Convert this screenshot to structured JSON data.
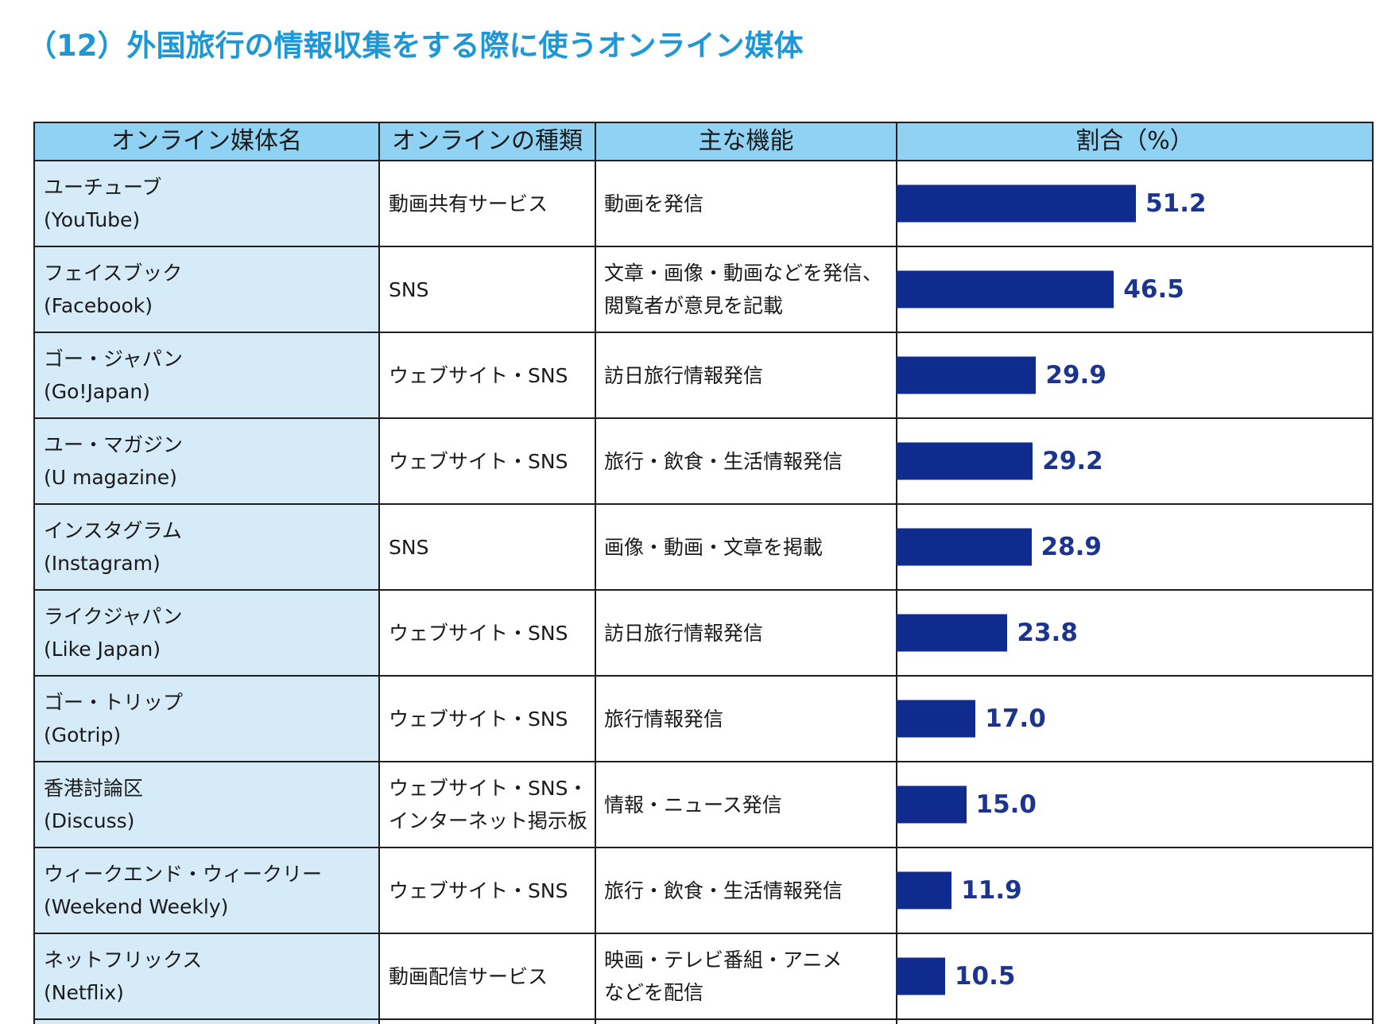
{
  "colors": {
    "title": "#1e97d6",
    "header_background": "#8fd2f3",
    "name_column_background": "#d5ebf8",
    "bar": "#0f2b8e",
    "value_label": "#1a348f",
    "border": "#1e1e1e"
  },
  "chart_data": {
    "type": "bar",
    "orientation": "horizontal",
    "title": "（12）外国旅行の情報収集をする際に使うオンライン媒体",
    "columns": [
      "オンライン媒体名",
      "オンラインの種類",
      "主な機能",
      "割合（%）"
    ],
    "xlim": [
      0,
      100
    ],
    "grid": false,
    "rows": [
      {
        "name": "ユーチューブ",
        "name_en": "(YouTube)",
        "type": [
          "動画共有サービス"
        ],
        "function": [
          "動画を発信"
        ],
        "value": 51.2
      },
      {
        "name": "フェイスブック",
        "name_en": "(Facebook)",
        "type": [
          "SNS"
        ],
        "function": [
          "文章・画像・動画などを発信、",
          "閲覧者が意見を記載"
        ],
        "value": 46.5
      },
      {
        "name": "ゴー・ジャパン",
        "name_en": "(Go!Japan)",
        "type": [
          "ウェブサイト・SNS"
        ],
        "function": [
          "訪日旅行情報発信"
        ],
        "value": 29.9
      },
      {
        "name": "ユー・マガジン",
        "name_en": "(U magazine)",
        "type": [
          "ウェブサイト・SNS"
        ],
        "function": [
          "旅行・飲食・生活情報発信"
        ],
        "value": 29.2
      },
      {
        "name": "インスタグラム",
        "name_en": "(Instagram)",
        "type": [
          "SNS"
        ],
        "function": [
          "画像・動画・文章を掲載"
        ],
        "value": 28.9
      },
      {
        "name": "ライクジャパン",
        "name_en": "(Like Japan)",
        "type": [
          "ウェブサイト・SNS"
        ],
        "function": [
          "訪日旅行情報発信"
        ],
        "value": 23.8
      },
      {
        "name": "ゴー・トリップ",
        "name_en": "(Gotrip)",
        "type": [
          "ウェブサイト・SNS"
        ],
        "function": [
          "旅行情報発信"
        ],
        "value": 17.0
      },
      {
        "name": "香港討論区",
        "name_en": "(Discuss)",
        "type": [
          "ウェブサイト・SNS・",
          "インターネット掲示板"
        ],
        "function": [
          "情報・ニュース発信"
        ],
        "value": 15.0
      },
      {
        "name": "ウィークエンド・ウィークリー",
        "name_en": "(Weekend Weekly)",
        "type": [
          "ウェブサイト・SNS"
        ],
        "function": [
          "旅行・飲食・生活情報発信"
        ],
        "value": 11.9
      },
      {
        "name": "ネットフリックス",
        "name_en": "(Netflix)",
        "type": [
          "動画配信サービス"
        ],
        "function": [
          "映画・テレビ番組・アニメ",
          "などを配信"
        ],
        "value": 10.5
      }
    ]
  }
}
